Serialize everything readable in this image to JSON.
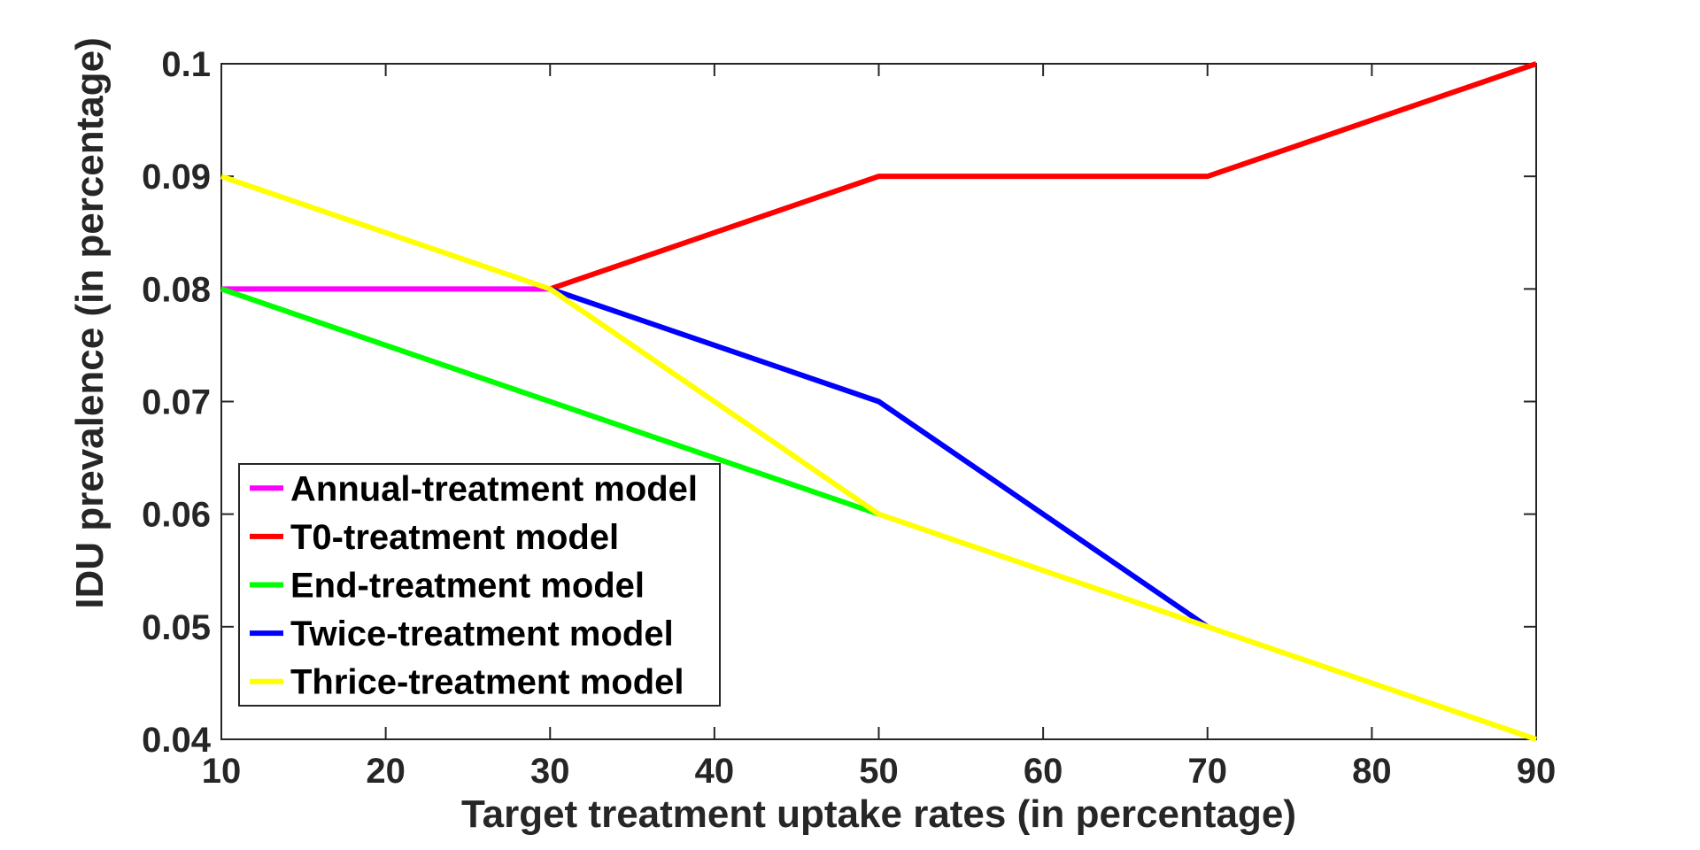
{
  "chart_data": {
    "type": "line",
    "title": "",
    "xlabel": "Target treatment uptake rates (in percentage)",
    "ylabel": "IDU prevalence (in percentage)",
    "xlim": [
      10,
      90
    ],
    "ylim": [
      0.04,
      0.1
    ],
    "xticks": [
      "10",
      "20",
      "30",
      "40",
      "50",
      "60",
      "70",
      "80",
      "90"
    ],
    "yticks": [
      "0.04",
      "0.05",
      "0.06",
      "0.07",
      "0.08",
      "0.09",
      "0.1"
    ],
    "grid": false,
    "legend_position": "inside-bottom-left",
    "background_color": "#ffffff",
    "axis_color": "#262626",
    "tick_label_color": "#262626",
    "legend_text_color": "#000000",
    "series": [
      {
        "name": "Annual-treatment model",
        "color": "#FF00FF",
        "points": [
          [
            10,
            0.08
          ],
          [
            30,
            0.08
          ]
        ]
      },
      {
        "name": "T0-treatment model",
        "color": "#FF0000",
        "points": [
          [
            30,
            0.08
          ],
          [
            50,
            0.09
          ],
          [
            70,
            0.09
          ],
          [
            90,
            0.1
          ]
        ]
      },
      {
        "name": "End-treatment model",
        "color": "#00FF00",
        "points": [
          [
            10,
            0.08
          ],
          [
            30,
            0.07
          ],
          [
            50,
            0.06
          ]
        ]
      },
      {
        "name": "Twice-treatment model",
        "color": "#0000FF",
        "points": [
          [
            30,
            0.08
          ],
          [
            50,
            0.07
          ],
          [
            70,
            0.05
          ]
        ]
      },
      {
        "name": "Thrice-treatment model",
        "color": "#FFFF00",
        "points": [
          [
            10,
            0.09
          ],
          [
            30,
            0.08
          ],
          [
            50,
            0.06
          ],
          [
            70,
            0.05
          ],
          [
            90,
            0.04
          ]
        ]
      }
    ]
  }
}
